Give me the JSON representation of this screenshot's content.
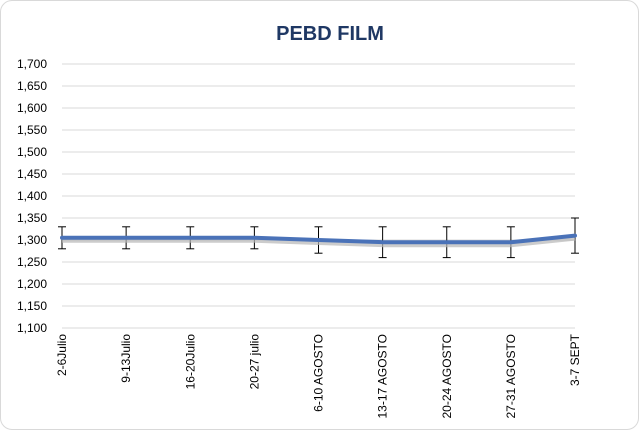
{
  "chart_data": {
    "type": "line",
    "title": "PEBD FILM",
    "xlabel": "",
    "ylabel": "",
    "categories": [
      "2-6Julio",
      "9-13Julio",
      "16-20Julio",
      "20-27 julio",
      "6-10 AGOSTO",
      "13-17 AGOSTO",
      "20-24 AGOSTO",
      "27-31 AGOSTO",
      "3-7 SEPT"
    ],
    "series": [
      {
        "values": [
          1305,
          1305,
          1305,
          1305,
          1300,
          1295,
          1295,
          1295,
          1310
        ],
        "error_low": [
          1280,
          1280,
          1280,
          1280,
          1270,
          1260,
          1260,
          1260,
          1270
        ],
        "error_high": [
          1330,
          1330,
          1330,
          1330,
          1330,
          1330,
          1330,
          1330,
          1350
        ]
      }
    ],
    "yticks": [
      "1,100",
      "1,150",
      "1,200",
      "1,250",
      "1,300",
      "1,350",
      "1,400",
      "1,450",
      "1,500",
      "1,550",
      "1,600",
      "1,650",
      "1,700"
    ],
    "ylim": [
      1100,
      1700
    ],
    "ystep": 50,
    "grid": true,
    "legend": "none",
    "colors": {
      "line": "#4a72b8",
      "line_shadow": "#b7b7b7",
      "gridline": "#d9d9d9",
      "errorbar": "#000000",
      "title": "#1f3864"
    }
  }
}
